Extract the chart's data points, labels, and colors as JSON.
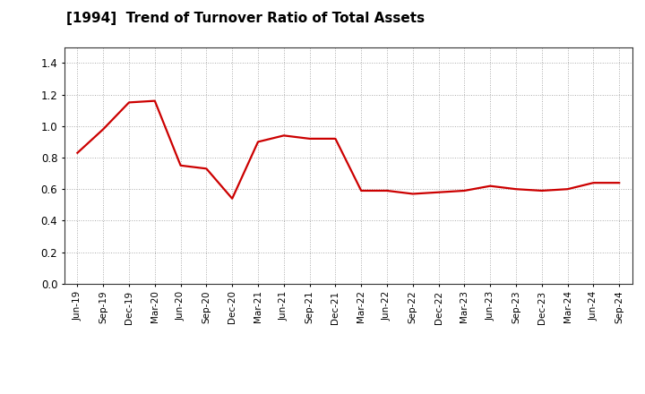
{
  "title": "[1994]  Trend of Turnover Ratio of Total Assets",
  "title_fontsize": 11,
  "line_color": "#cc0000",
  "line_width": 1.6,
  "background_color": "#ffffff",
  "grid_color": "#aaaaaa",
  "ylim": [
    0.0,
    1.5
  ],
  "yticks": [
    0.0,
    0.2,
    0.4,
    0.6,
    0.8,
    1.0,
    1.2,
    1.4
  ],
  "x_labels": [
    "Jun-19",
    "Sep-19",
    "Dec-19",
    "Mar-20",
    "Jun-20",
    "Sep-20",
    "Dec-20",
    "Mar-21",
    "Jun-21",
    "Sep-21",
    "Dec-21",
    "Mar-22",
    "Jun-22",
    "Sep-22",
    "Dec-22",
    "Mar-23",
    "Jun-23",
    "Sep-23",
    "Dec-23",
    "Mar-24",
    "Jun-24",
    "Sep-24"
  ],
  "y_values": [
    0.83,
    0.98,
    1.15,
    1.16,
    0.75,
    0.73,
    0.54,
    0.9,
    0.94,
    0.92,
    0.92,
    0.59,
    0.59,
    0.57,
    0.58,
    0.59,
    0.62,
    0.6,
    0.59,
    0.6,
    0.64,
    0.64
  ]
}
